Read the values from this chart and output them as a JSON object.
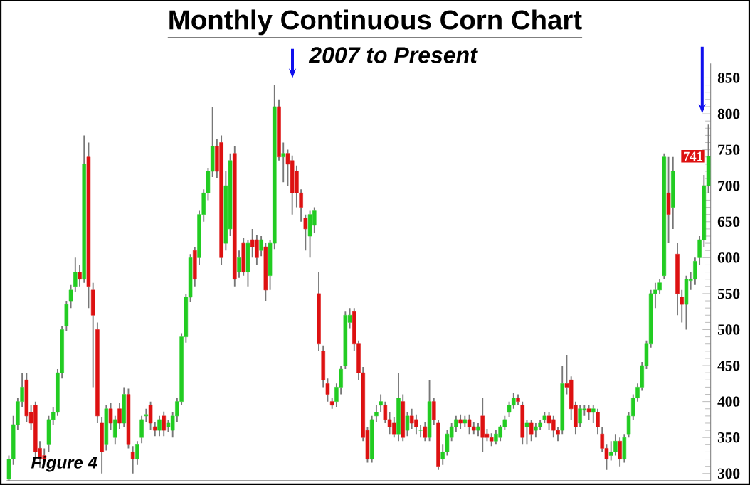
{
  "chart_data": {
    "type": "candlestick",
    "title": "Monthly Continuous Corn Chart",
    "categories": [
      null,
      null,
      null,
      null,
      null,
      null,
      null,
      null,
      null,
      null,
      null,
      null,
      null,
      null,
      null,
      null,
      null,
      null,
      null,
      null,
      null,
      null,
      null,
      null,
      null,
      null,
      null,
      null,
      null,
      null,
      null,
      null,
      null,
      null,
      null,
      null,
      null,
      null,
      null,
      null,
      null,
      null,
      null,
      null,
      null,
      null,
      null,
      null,
      null,
      null,
      null,
      null,
      null,
      null,
      null,
      null,
      null,
      null,
      null,
      null,
      null,
      null,
      null,
      null,
      null,
      null,
      null,
      null,
      null,
      null,
      null,
      null,
      null,
      null,
      null,
      null,
      null,
      null,
      null,
      null,
      null,
      null,
      null,
      null,
      null,
      null,
      null,
      null,
      null,
      null,
      null,
      null,
      null,
      null,
      null,
      null,
      null,
      null,
      null,
      null,
      null,
      null,
      null,
      null,
      null,
      null,
      null,
      null,
      null,
      null,
      null,
      null,
      null,
      null,
      null,
      null,
      null,
      null,
      null,
      null,
      null,
      null,
      null,
      null,
      null,
      null,
      null,
      null,
      null,
      null,
      null,
      null,
      null,
      null,
      null,
      null,
      null,
      null,
      null,
      null,
      null,
      null,
      null,
      null,
      null,
      null,
      null,
      null,
      null,
      null,
      null,
      null,
      null,
      null,
      null,
      null,
      null,
      null,
      null
    ],
    "ohlc": [
      [
        292,
        325,
        290,
        320
      ],
      [
        320,
        380,
        312,
        368
      ],
      [
        368,
        405,
        360,
        400
      ],
      [
        400,
        440,
        392,
        420
      ],
      [
        430,
        440,
        372,
        380
      ],
      [
        385,
        395,
        360,
        370
      ],
      [
        395,
        400,
        320,
        330
      ],
      [
        335,
        345,
        308,
        320
      ],
      [
        325,
        335,
        312,
        320
      ],
      [
        340,
        380,
        330,
        375
      ],
      [
        375,
        392,
        368,
        385
      ],
      [
        385,
        445,
        380,
        440
      ],
      [
        440,
        505,
        432,
        500
      ],
      [
        505,
        540,
        498,
        535
      ],
      [
        540,
        562,
        530,
        555
      ],
      [
        560,
        600,
        552,
        580
      ],
      [
        580,
        590,
        560,
        570
      ],
      [
        570,
        770,
        565,
        730
      ],
      [
        740,
        760,
        530,
        560
      ],
      [
        555,
        565,
        420,
        520
      ],
      [
        500,
        510,
        370,
        380
      ],
      [
        370,
        378,
        300,
        330
      ],
      [
        340,
        395,
        332,
        390
      ],
      [
        390,
        398,
        360,
        370
      ],
      [
        350,
        380,
        340,
        375
      ],
      [
        390,
        398,
        362,
        370
      ],
      [
        370,
        420,
        365,
        410
      ],
      [
        410,
        418,
        335,
        340
      ],
      [
        330,
        338,
        300,
        320
      ],
      [
        320,
        345,
        312,
        340
      ],
      [
        350,
        380,
        342,
        375
      ],
      [
        380,
        390,
        372,
        382
      ],
      [
        395,
        400,
        360,
        370
      ],
      [
        365,
        372,
        352,
        360
      ],
      [
        360,
        380,
        352,
        375
      ],
      [
        380,
        386,
        352,
        360
      ],
      [
        365,
        375,
        358,
        370
      ],
      [
        360,
        385,
        350,
        380
      ],
      [
        380,
        405,
        372,
        400
      ],
      [
        400,
        495,
        395,
        490
      ],
      [
        490,
        550,
        482,
        545
      ],
      [
        545,
        605,
        538,
        600
      ],
      [
        610,
        615,
        560,
        570
      ],
      [
        600,
        665,
        590,
        660
      ],
      [
        660,
        695,
        650,
        690
      ],
      [
        690,
        725,
        680,
        720
      ],
      [
        720,
        810,
        712,
        755
      ],
      [
        755,
        765,
        710,
        720
      ],
      [
        760,
        770,
        590,
        600
      ],
      [
        620,
        720,
        610,
        700
      ],
      [
        640,
        745,
        630,
        735
      ],
      [
        745,
        755,
        560,
        570
      ],
      [
        580,
        610,
        572,
        600
      ],
      [
        620,
        628,
        575,
        580
      ],
      [
        580,
        625,
        560,
        620
      ],
      [
        625,
        640,
        600,
        615
      ],
      [
        625,
        632,
        590,
        600
      ],
      [
        610,
        630,
        602,
        625
      ],
      [
        615,
        620,
        540,
        555
      ],
      [
        575,
        625,
        555,
        620
      ],
      [
        620,
        840,
        612,
        810
      ],
      [
        810,
        820,
        735,
        740
      ],
      [
        740,
        760,
        705,
        745
      ],
      [
        745,
        750,
        700,
        730
      ],
      [
        735,
        742,
        660,
        690
      ],
      [
        720,
        728,
        670,
        690
      ],
      [
        690,
        695,
        650,
        670
      ],
      [
        655,
        660,
        610,
        640
      ],
      [
        630,
        665,
        600,
        660
      ],
      [
        645,
        670,
        635,
        665
      ],
      [
        550,
        580,
        470,
        480
      ],
      [
        470,
        478,
        420,
        430
      ],
      [
        425,
        432,
        400,
        410
      ],
      [
        400,
        405,
        390,
        395
      ],
      [
        400,
        425,
        392,
        420
      ],
      [
        420,
        450,
        410,
        445
      ],
      [
        450,
        525,
        445,
        520
      ],
      [
        510,
        530,
        502,
        520
      ],
      [
        525,
        530,
        470,
        480
      ],
      [
        480,
        485,
        430,
        440
      ],
      [
        440,
        448,
        345,
        350
      ],
      [
        360,
        365,
        315,
        320
      ],
      [
        320,
        380,
        315,
        375
      ],
      [
        380,
        395,
        372,
        385
      ],
      [
        395,
        410,
        385,
        400
      ],
      [
        395,
        400,
        370,
        375
      ],
      [
        375,
        385,
        355,
        365
      ],
      [
        370,
        378,
        350,
        355
      ],
      [
        355,
        440,
        345,
        405
      ],
      [
        400,
        410,
        345,
        350
      ],
      [
        360,
        385,
        352,
        380
      ],
      [
        380,
        390,
        362,
        370
      ],
      [
        375,
        382,
        355,
        365
      ],
      [
        360,
        368,
        350,
        360
      ],
      [
        365,
        372,
        345,
        350
      ],
      [
        350,
        430,
        345,
        400
      ],
      [
        400,
        405,
        368,
        375
      ],
      [
        370,
        375,
        305,
        310
      ],
      [
        320,
        340,
        312,
        330
      ],
      [
        330,
        360,
        325,
        355
      ],
      [
        350,
        370,
        345,
        365
      ],
      [
        365,
        380,
        358,
        375
      ],
      [
        375,
        382,
        362,
        370
      ],
      [
        370,
        380,
        365,
        375
      ],
      [
        375,
        382,
        355,
        365
      ],
      [
        365,
        372,
        355,
        360
      ],
      [
        360,
        370,
        352,
        365
      ],
      [
        380,
        405,
        330,
        350
      ],
      [
        355,
        362,
        345,
        350
      ],
      [
        350,
        356,
        338,
        345
      ],
      [
        345,
        360,
        340,
        355
      ],
      [
        350,
        368,
        345,
        365
      ],
      [
        365,
        380,
        360,
        375
      ],
      [
        385,
        400,
        378,
        395
      ],
      [
        395,
        412,
        390,
        405
      ],
      [
        405,
        410,
        395,
        400
      ],
      [
        395,
        400,
        340,
        350
      ],
      [
        365,
        375,
        340,
        370
      ],
      [
        370,
        375,
        345,
        355
      ],
      [
        360,
        370,
        350,
        365
      ],
      [
        365,
        375,
        360,
        370
      ],
      [
        375,
        385,
        370,
        380
      ],
      [
        380,
        385,
        360,
        370
      ],
      [
        375,
        380,
        350,
        360
      ],
      [
        360,
        365,
        345,
        355
      ],
      [
        360,
        450,
        355,
        425
      ],
      [
        425,
        465,
        410,
        420
      ],
      [
        430,
        435,
        375,
        390
      ],
      [
        395,
        400,
        355,
        365
      ],
      [
        370,
        395,
        365,
        390
      ],
      [
        388,
        395,
        380,
        390
      ],
      [
        390,
        395,
        375,
        385
      ],
      [
        385,
        395,
        370,
        390
      ],
      [
        385,
        390,
        355,
        365
      ],
      [
        355,
        365,
        330,
        335
      ],
      [
        335,
        340,
        305,
        320
      ],
      [
        325,
        345,
        318,
        330
      ],
      [
        330,
        355,
        325,
        345
      ],
      [
        345,
        350,
        310,
        320
      ],
      [
        320,
        355,
        315,
        350
      ],
      [
        355,
        385,
        350,
        380
      ],
      [
        380,
        410,
        375,
        405
      ],
      [
        405,
        425,
        400,
        420
      ],
      [
        420,
        455,
        415,
        450
      ],
      [
        450,
        485,
        445,
        480
      ],
      [
        480,
        555,
        475,
        550
      ],
      [
        550,
        565,
        530,
        555
      ],
      [
        555,
        570,
        550,
        565
      ],
      [
        575,
        745,
        570,
        740
      ],
      [
        690,
        740,
        620,
        660
      ],
      [
        670,
        740,
        640,
        720
      ],
      [
        605,
        620,
        520,
        550
      ],
      [
        545,
        555,
        510,
        535
      ],
      [
        535,
        575,
        500,
        570
      ],
      [
        568,
        580,
        555,
        570
      ],
      [
        570,
        600,
        562,
        595
      ],
      [
        600,
        630,
        590,
        625
      ],
      [
        625,
        715,
        615,
        700
      ],
      [
        700,
        785,
        690,
        741
      ]
    ],
    "ylim": [
      290,
      870
    ],
    "yticks": [
      300,
      350,
      400,
      450,
      500,
      550,
      600,
      650,
      700,
      750,
      800,
      850
    ],
    "annotations": [
      "2007 to Present",
      "Figure 4",
      {
        "text": "741",
        "y": 741
      }
    ]
  }
}
